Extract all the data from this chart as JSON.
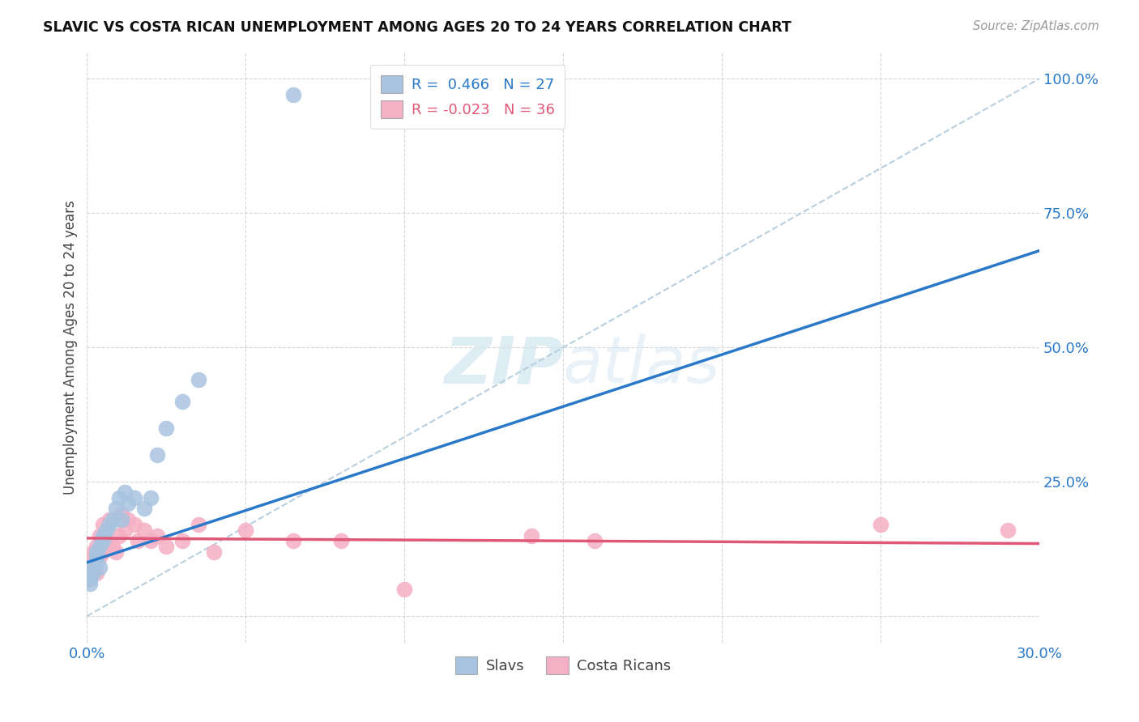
{
  "title": "SLAVIC VS COSTA RICAN UNEMPLOYMENT AMONG AGES 20 TO 24 YEARS CORRELATION CHART",
  "source": "Source: ZipAtlas.com",
  "ylabel": "Unemployment Among Ages 20 to 24 years",
  "xmin": 0.0,
  "xmax": 0.3,
  "ymin": -0.05,
  "ymax": 1.05,
  "xticks": [
    0.0,
    0.05,
    0.1,
    0.15,
    0.2,
    0.25,
    0.3
  ],
  "xtick_labels": [
    "0.0%",
    "",
    "",
    "",
    "",
    "",
    "30.0%"
  ],
  "yticks": [
    0.0,
    0.25,
    0.5,
    0.75,
    1.0
  ],
  "ytick_labels": [
    "",
    "25.0%",
    "50.0%",
    "75.0%",
    "100.0%"
  ],
  "legend_r_slavs": "R =  0.466",
  "legend_n_slavs": "N = 27",
  "legend_r_cr": "R = -0.023",
  "legend_n_cr": "N = 36",
  "slavs_color": "#a8c4e0",
  "slavs_line_color": "#2979c8",
  "cr_color": "#f4b0c4",
  "cr_line_color": "#e05878",
  "diag_line_color": "#b8cfe0",
  "watermark_color": "#d0e4f0",
  "slavs_x": [
    0.001,
    0.001,
    0.002,
    0.002,
    0.003,
    0.003,
    0.003,
    0.004,
    0.004,
    0.005,
    0.005,
    0.006,
    0.007,
    0.008,
    0.009,
    0.01,
    0.011,
    0.012,
    0.013,
    0.015,
    0.018,
    0.02,
    0.022,
    0.025,
    0.03,
    0.035,
    0.065
  ],
  "slavs_y": [
    0.06,
    0.07,
    0.08,
    0.09,
    0.1,
    0.11,
    0.12,
    0.09,
    0.13,
    0.14,
    0.15,
    0.16,
    0.17,
    0.18,
    0.2,
    0.22,
    0.18,
    0.23,
    0.21,
    0.22,
    0.2,
    0.22,
    0.3,
    0.35,
    0.4,
    0.44,
    0.97
  ],
  "cr_x": [
    0.001,
    0.001,
    0.002,
    0.002,
    0.003,
    0.003,
    0.004,
    0.004,
    0.005,
    0.005,
    0.006,
    0.006,
    0.007,
    0.008,
    0.009,
    0.01,
    0.011,
    0.012,
    0.013,
    0.015,
    0.016,
    0.018,
    0.02,
    0.022,
    0.025,
    0.03,
    0.035,
    0.04,
    0.05,
    0.065,
    0.08,
    0.1,
    0.14,
    0.16,
    0.25,
    0.29
  ],
  "cr_y": [
    0.07,
    0.1,
    0.09,
    0.12,
    0.08,
    0.13,
    0.11,
    0.15,
    0.12,
    0.17,
    0.14,
    0.16,
    0.18,
    0.13,
    0.12,
    0.15,
    0.19,
    0.16,
    0.18,
    0.17,
    0.14,
    0.16,
    0.14,
    0.15,
    0.13,
    0.14,
    0.17,
    0.12,
    0.16,
    0.14,
    0.14,
    0.05,
    0.15,
    0.14,
    0.17,
    0.16
  ],
  "slavs_regline": [
    0.0,
    0.3
  ],
  "slavs_regline_y": [
    0.1,
    0.68
  ],
  "cr_regline": [
    0.0,
    0.3
  ],
  "cr_regline_y": [
    0.145,
    0.135
  ],
  "diag_line_x": [
    0.0,
    0.3
  ],
  "diag_line_y": [
    0.0,
    1.0
  ]
}
